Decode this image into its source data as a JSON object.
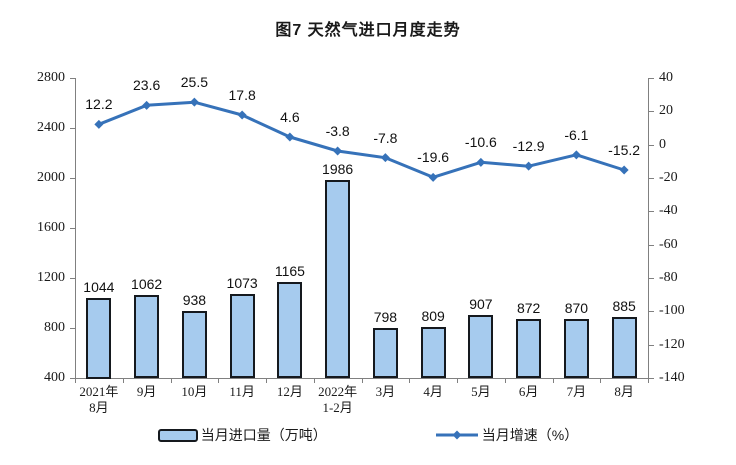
{
  "chart_data": {
    "type": "combo",
    "title": "图7 天然气进口月度走势",
    "categories": [
      [
        "2021年",
        "8月"
      ],
      [
        "9月"
      ],
      [
        "10月"
      ],
      [
        "11月"
      ],
      [
        "12月"
      ],
      [
        "2022年",
        "1-2月"
      ],
      [
        "3月"
      ],
      [
        "4月"
      ],
      [
        "5月"
      ],
      [
        "6月"
      ],
      [
        "7月"
      ],
      [
        "8月"
      ]
    ],
    "series": [
      {
        "name": "当月进口量（万吨）",
        "type": "bar",
        "axis": "left",
        "values": [
          1044,
          1062,
          938,
          1073,
          1165,
          1986,
          798,
          809,
          907,
          872,
          870,
          885
        ]
      },
      {
        "name": "当月增速（%）",
        "type": "line",
        "axis": "right",
        "values": [
          12.2,
          23.6,
          25.5,
          17.8,
          4.6,
          -3.8,
          -7.8,
          -19.6,
          -10.6,
          -12.9,
          -6.1,
          -15.2
        ]
      }
    ],
    "left_axis": {
      "min": 400,
      "max": 2800,
      "ticks": [
        2800,
        2400,
        2000,
        1600,
        1200,
        800,
        400
      ]
    },
    "right_axis": {
      "min": -140,
      "max": 40,
      "ticks": [
        40,
        20,
        0,
        -20,
        -40,
        -60,
        -80,
        -100,
        -120,
        -140
      ]
    },
    "grid": false,
    "legend_position": "bottom"
  },
  "colors": {
    "bar_fill": "#a6cbee",
    "bar_border": "#15191e",
    "line": "#3672b9",
    "axis": "#808080",
    "text": "#1a1a1a"
  }
}
